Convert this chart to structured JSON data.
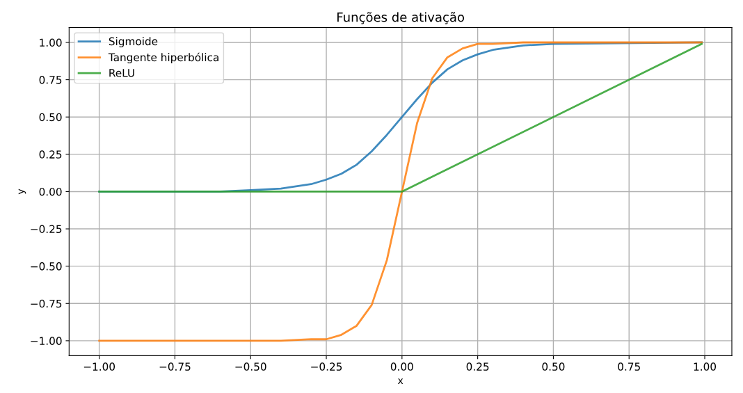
{
  "chart_data": {
    "type": "line",
    "title": "Funções de ativação",
    "xlabel": "x",
    "ylabel": "y",
    "series": [
      {
        "name": "Sigmoide",
        "color": "#1f77b4",
        "x": [
          -1,
          -0.6,
          -0.5,
          -0.4,
          -0.3,
          -0.25,
          -0.2,
          -0.15,
          -0.1,
          -0.05,
          0,
          0.05,
          0.1,
          0.15,
          0.2,
          0.25,
          0.3,
          0.4,
          0.5,
          0.99
        ],
        "values": [
          0,
          0.0,
          0.01,
          0.02,
          0.05,
          0.08,
          0.12,
          0.18,
          0.27,
          0.38,
          0.5,
          0.62,
          0.73,
          0.82,
          0.88,
          0.92,
          0.95,
          0.98,
          0.99,
          1.0
        ]
      },
      {
        "name": "Tangente hiperbólica",
        "color": "#ff7f0e",
        "x": [
          -1,
          -0.4,
          -0.3,
          -0.25,
          -0.2,
          -0.15,
          -0.1,
          -0.05,
          0,
          0.05,
          0.1,
          0.15,
          0.2,
          0.25,
          0.3,
          0.4,
          0.99
        ],
        "values": [
          -1,
          -1.0,
          -0.99,
          -0.99,
          -0.96,
          -0.9,
          -0.76,
          -0.46,
          0,
          0.46,
          0.76,
          0.9,
          0.96,
          0.99,
          0.99,
          1.0,
          1.0
        ]
      },
      {
        "name": "ReLU",
        "color": "#2ca02c",
        "x": [
          -1,
          0,
          0.99
        ],
        "values": [
          0,
          0,
          0.99
        ]
      }
    ],
    "xlim": [
      -1.0995,
      1.0895
    ],
    "ylim": [
      -1.1,
      1.1
    ],
    "xticks": [
      {
        "value": -1,
        "label": "−1.00"
      },
      {
        "value": -0.75,
        "label": "−0.75"
      },
      {
        "value": -0.5,
        "label": "−0.50"
      },
      {
        "value": -0.25,
        "label": "−0.25"
      },
      {
        "value": 0,
        "label": "0.00"
      },
      {
        "value": 0.25,
        "label": "0.25"
      },
      {
        "value": 0.5,
        "label": "0.50"
      },
      {
        "value": 0.75,
        "label": "0.75"
      },
      {
        "value": 1,
        "label": "1.00"
      }
    ],
    "yticks": [
      {
        "value": -1,
        "label": "−1.00"
      },
      {
        "value": -0.75,
        "label": "−0.75"
      },
      {
        "value": -0.5,
        "label": "−0.50"
      },
      {
        "value": -0.25,
        "label": "−0.25"
      },
      {
        "value": 0,
        "label": "0.00"
      },
      {
        "value": 0.25,
        "label": "0.25"
      },
      {
        "value": 0.5,
        "label": "0.50"
      },
      {
        "value": 0.75,
        "label": "0.75"
      },
      {
        "value": 1,
        "label": "1.00"
      }
    ],
    "grid": true,
    "legend": "top left"
  }
}
